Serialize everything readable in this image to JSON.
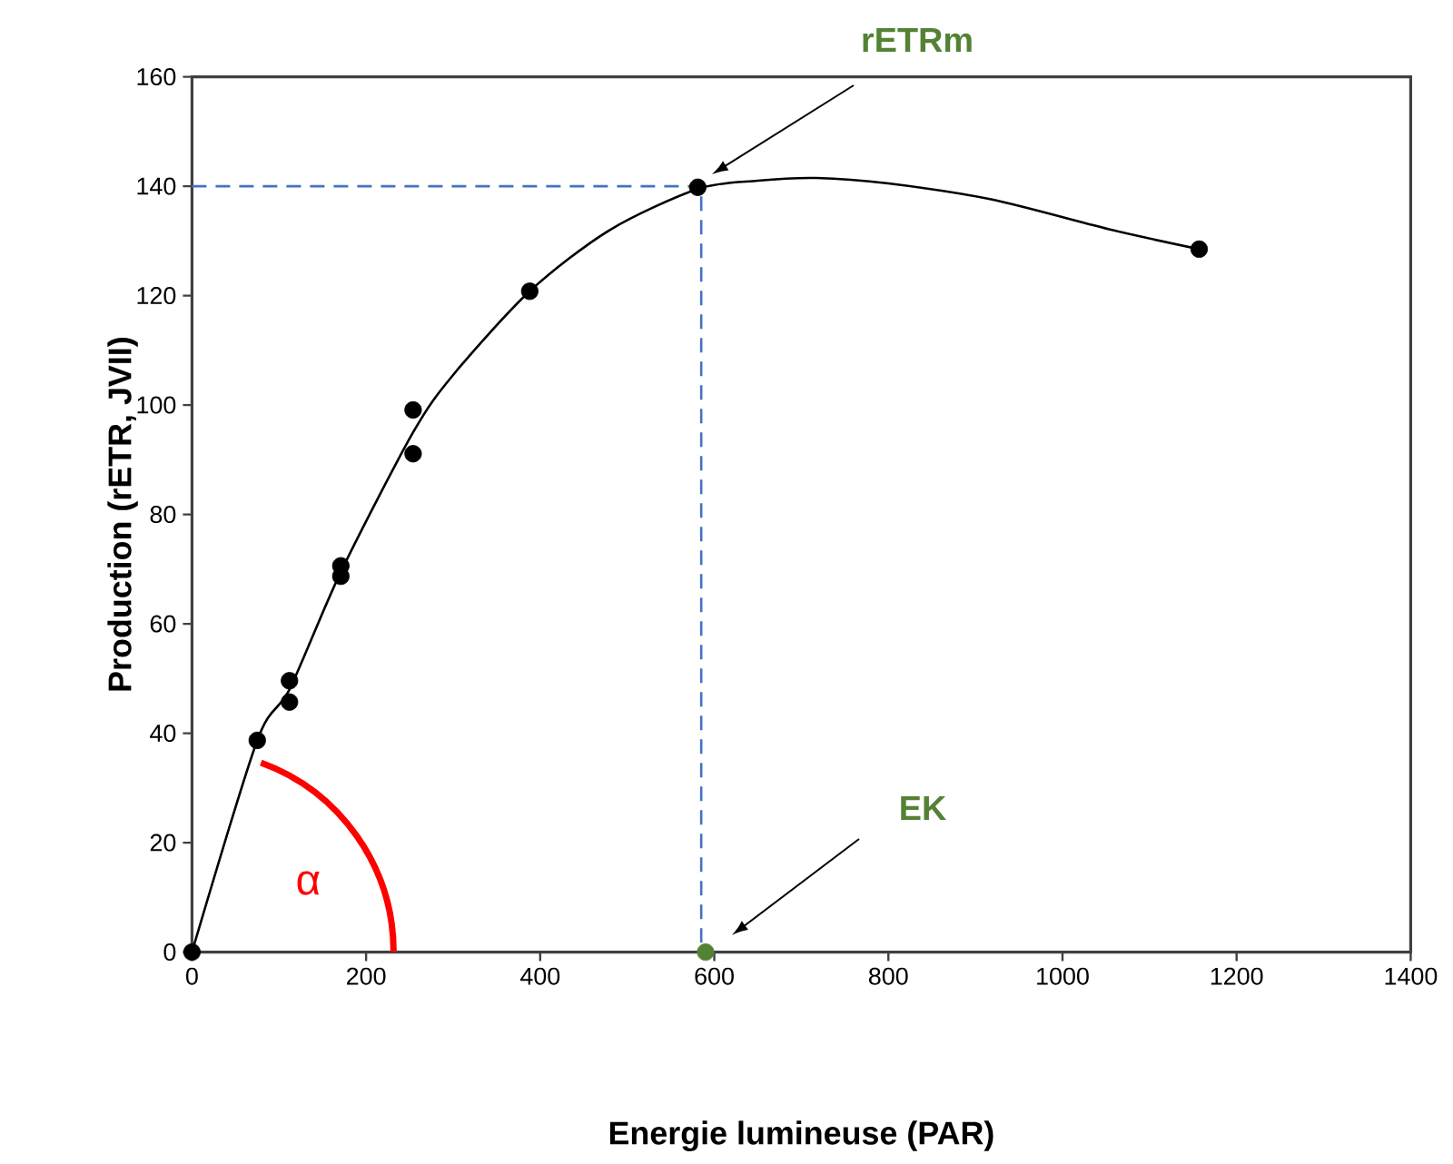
{
  "chart_data": {
    "type": "scatter",
    "xlabel": "Energie lumineuse (PAR)",
    "ylabel": "Production (rETR,  JVII)",
    "xlim": [
      0,
      1400
    ],
    "ylim": [
      0,
      160
    ],
    "xticks": [
      0,
      200,
      400,
      600,
      800,
      1000,
      1200,
      1400
    ],
    "yticks": [
      0,
      20,
      40,
      60,
      80,
      100,
      120,
      140,
      160
    ],
    "marker": "circle",
    "series": [
      {
        "color": "#000000",
        "x": [
          0,
          75,
          112,
          112,
          171,
          171,
          254,
          254,
          388,
          581,
          1157
        ],
        "values": [
          0,
          38.7,
          49.6,
          45.7,
          70.6,
          68.7,
          99.1,
          91.1,
          120.8,
          139.8,
          128.5
        ]
      },
      {
        "type": "line",
        "color": "#000000",
        "marker": "none",
        "x": [
          0,
          75,
          112,
          171,
          254,
          300,
          388,
          480,
          581,
          650,
          717,
          800,
          918,
          1057,
          1157
        ],
        "values": [
          0,
          38.7,
          48,
          69.5,
          95,
          105.5,
          120.8,
          132,
          139.5,
          141,
          141.5,
          140.5,
          137.6,
          132,
          128.5
        ]
      },
      {
        "type": "line",
        "color": "#4472c4",
        "marker": "none",
        "line_style": "dashed",
        "x": [
          0,
          585,
          585
        ],
        "values": [
          140,
          140,
          0
        ]
      },
      {
        "color": "#548235",
        "x": [
          590
        ],
        "values": [
          0
        ]
      }
    ],
    "annotations": [
      "rETRm",
      "EK",
      "α"
    ]
  }
}
